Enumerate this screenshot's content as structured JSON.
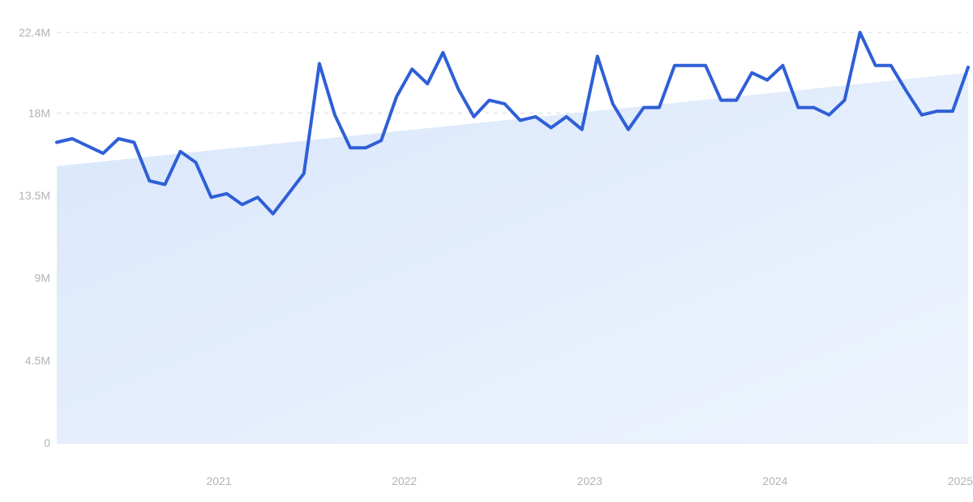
{
  "chart_data": {
    "type": "line",
    "title": "",
    "xlabel": "",
    "ylabel": "",
    "ylim": [
      0,
      22400000
    ],
    "grid": true,
    "legend": "none",
    "y_ticks": [
      {
        "value": 0,
        "label": "0"
      },
      {
        "value": 4500000,
        "label": "4.5M"
      },
      {
        "value": 9000000,
        "label": "9M"
      },
      {
        "value": 13500000,
        "label": "13.5M"
      },
      {
        "value": 18000000,
        "label": "18M"
      },
      {
        "value": 22400000,
        "label": "22.4M"
      }
    ],
    "x_ticks": [
      "2021",
      "2022",
      "2023",
      "2024",
      "2025"
    ],
    "x_start": "2020-08",
    "series": [
      {
        "color": "#2f5fd7",
        "x": [
          "2020-08",
          "2020-09",
          "2020-10",
          "2020-11",
          "2020-12",
          "2021-01",
          "2021-02",
          "2021-03",
          "2021-04",
          "2021-05",
          "2021-06",
          "2021-07",
          "2021-08",
          "2021-09",
          "2021-10",
          "2021-11",
          "2021-12",
          "2022-01",
          "2022-02",
          "2022-03",
          "2022-04",
          "2022-05",
          "2022-06",
          "2022-07",
          "2022-08",
          "2022-09",
          "2022-10",
          "2022-11",
          "2022-12",
          "2023-01",
          "2023-02",
          "2023-03",
          "2023-04",
          "2023-05",
          "2023-06",
          "2023-07",
          "2023-08",
          "2023-09",
          "2023-10",
          "2023-11",
          "2023-12",
          "2024-01",
          "2024-02",
          "2024-03",
          "2024-04",
          "2024-05",
          "2024-06",
          "2024-07",
          "2024-08",
          "2024-09",
          "2024-10",
          "2024-11",
          "2024-12",
          "2025-01",
          "2025-02",
          "2025-03",
          "2025-04",
          "2025-05",
          "2025-06",
          "2025-07"
        ],
        "values": [
          16400000,
          16600000,
          16200000,
          15800000,
          16600000,
          16400000,
          14300000,
          14100000,
          15900000,
          15300000,
          13400000,
          13600000,
          13000000,
          13400000,
          12500000,
          13600000,
          14700000,
          20700000,
          17900000,
          16100000,
          16100000,
          16500000,
          18900000,
          20400000,
          19600000,
          21300000,
          19300000,
          17800000,
          18700000,
          18500000,
          17600000,
          17800000,
          17200000,
          17800000,
          17100000,
          21100000,
          18500000,
          17100000,
          18300000,
          18300000,
          20600000,
          20600000,
          20600000,
          18700000,
          18700000,
          20200000,
          19800000,
          20600000,
          18300000,
          18300000,
          17900000,
          18700000,
          22400000,
          20600000,
          20600000,
          19200000,
          17900000,
          18100000,
          18100000,
          20500000
        ]
      }
    ],
    "trend": {
      "start_value": 15100000,
      "end_value": 20200000,
      "color": "#d6e6fb"
    }
  }
}
